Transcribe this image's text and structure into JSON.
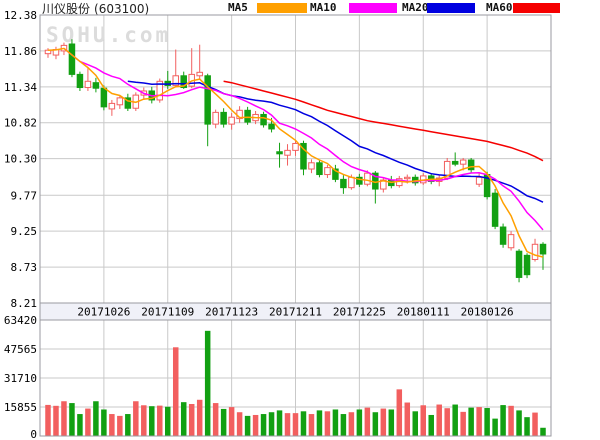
{
  "header": {
    "title_name": "川仪股份",
    "title_code": "(603100)",
    "legend": [
      {
        "label": "MA5",
        "color": "#ffa000"
      },
      {
        "label": "MA10",
        "color": "#ff00ff"
      },
      {
        "label": "MA20",
        "color": "#0000e0"
      },
      {
        "label": "MA60",
        "color": "#f50000"
      }
    ]
  },
  "watermark": "SOHU.com",
  "chart_data": {
    "type": "candlestick",
    "title": "川仪股份 (603100)",
    "legend_entries": [
      "MA5",
      "MA10",
      "MA20",
      "MA60"
    ],
    "price_axis": {
      "ticks": [
        "12.38",
        "11.86",
        "11.34",
        "10.82",
        "10.30",
        "9.77",
        "9.25",
        "8.73",
        "8.21"
      ],
      "min": 8.21,
      "max": 12.38
    },
    "volume_axis": {
      "ticks": [
        "63420",
        "47565",
        "31710",
        "15855",
        "0"
      ],
      "min": 0,
      "max": 63420
    },
    "x_axis": {
      "date_labels": [
        "20171026",
        "20171109",
        "20171123",
        "20171211",
        "20171225",
        "20180111",
        "20180126"
      ]
    },
    "colors": {
      "up": "#f25f5f",
      "down": "#12a012",
      "ma5": "#ffa000",
      "ma10": "#ff00ff",
      "ma20": "#0000e0",
      "ma60": "#f50000",
      "grid": "#c9c9c9",
      "border": "#9a9aa0",
      "date_strip_bg": "#f0f1f8",
      "watermark": "#dcdcdc",
      "text": "#000000"
    },
    "candles_format": "[open, high, low, close]",
    "candles": [
      [
        11.82,
        11.9,
        11.76,
        11.87
      ],
      [
        11.8,
        11.92,
        11.74,
        11.88
      ],
      [
        11.86,
        11.98,
        11.8,
        11.94
      ],
      [
        11.96,
        12.03,
        11.48,
        11.52
      ],
      [
        11.52,
        11.56,
        11.28,
        11.33
      ],
      [
        11.33,
        11.62,
        11.28,
        11.42
      ],
      [
        11.4,
        11.47,
        11.26,
        11.32
      ],
      [
        11.32,
        11.36,
        11.0,
        11.05
      ],
      [
        11.02,
        11.15,
        10.92,
        11.1
      ],
      [
        11.08,
        11.22,
        11.02,
        11.18
      ],
      [
        11.18,
        11.24,
        10.99,
        11.03
      ],
      [
        11.03,
        11.26,
        10.99,
        11.22
      ],
      [
        11.22,
        11.33,
        11.15,
        11.28
      ],
      [
        11.28,
        11.34,
        11.1,
        11.15
      ],
      [
        11.15,
        11.46,
        11.11,
        11.42
      ],
      [
        11.42,
        11.57,
        11.31,
        11.36
      ],
      [
        11.36,
        11.88,
        11.33,
        11.5
      ],
      [
        11.5,
        11.56,
        11.31,
        11.33
      ],
      [
        11.35,
        11.9,
        11.32,
        11.52
      ],
      [
        11.5,
        11.95,
        11.45,
        11.55
      ],
      [
        11.5,
        11.53,
        10.48,
        10.8
      ],
      [
        10.8,
        11.01,
        10.74,
        10.97
      ],
      [
        10.97,
        11.03,
        10.75,
        10.8
      ],
      [
        10.8,
        10.96,
        10.72,
        10.9
      ],
      [
        10.88,
        11.06,
        10.82,
        11.0
      ],
      [
        11.0,
        11.05,
        10.79,
        10.83
      ],
      [
        10.85,
        10.99,
        10.8,
        10.94
      ],
      [
        10.94,
        10.98,
        10.75,
        10.79
      ],
      [
        10.8,
        10.89,
        10.68,
        10.73
      ],
      [
        10.4,
        10.53,
        10.17,
        10.37
      ],
      [
        10.35,
        10.51,
        10.2,
        10.42
      ],
      [
        10.42,
        10.56,
        10.34,
        10.52
      ],
      [
        10.52,
        10.56,
        10.06,
        10.15
      ],
      [
        10.15,
        10.29,
        10.09,
        10.24
      ],
      [
        10.24,
        10.28,
        10.03,
        10.07
      ],
      [
        10.07,
        10.21,
        10.02,
        10.17
      ],
      [
        10.15,
        10.21,
        9.96,
        10.0
      ],
      [
        10.0,
        10.06,
        9.79,
        9.88
      ],
      [
        9.88,
        10.07,
        9.85,
        10.03
      ],
      [
        10.03,
        10.08,
        9.89,
        9.93
      ],
      [
        9.93,
        10.13,
        9.9,
        10.09
      ],
      [
        10.09,
        10.12,
        9.65,
        9.86
      ],
      [
        9.86,
        10.03,
        9.81,
        9.99
      ],
      [
        9.99,
        10.05,
        9.87,
        9.91
      ],
      [
        9.91,
        10.05,
        9.88,
        10.01
      ],
      [
        10.01,
        10.07,
        9.94,
        10.03
      ],
      [
        10.03,
        10.07,
        9.91,
        9.95
      ],
      [
        9.95,
        10.09,
        9.92,
        10.05
      ],
      [
        10.05,
        10.09,
        9.93,
        9.97
      ],
      [
        9.97,
        10.07,
        9.9,
        10.02
      ],
      [
        10.02,
        10.31,
        9.99,
        10.26
      ],
      [
        10.26,
        10.39,
        10.19,
        10.22
      ],
      [
        10.22,
        10.31,
        10.13,
        10.28
      ],
      [
        10.28,
        10.31,
        10.09,
        10.14
      ],
      [
        9.93,
        10.09,
        9.89,
        10.03
      ],
      [
        10.07,
        10.11,
        9.71,
        9.75
      ],
      [
        9.8,
        9.86,
        9.28,
        9.32
      ],
      [
        9.31,
        9.36,
        9.01,
        9.06
      ],
      [
        9.01,
        9.25,
        8.97,
        9.2
      ],
      [
        8.96,
        8.99,
        8.51,
        8.58
      ],
      [
        8.9,
        8.93,
        8.57,
        8.62
      ],
      [
        8.84,
        9.14,
        8.81,
        9.06
      ],
      [
        9.06,
        9.09,
        8.69,
        8.92
      ]
    ],
    "volumes": [
      17000,
      16500,
      19000,
      18000,
      12000,
      15000,
      19000,
      14500,
      12000,
      11000,
      12000,
      19000,
      16800,
      16300,
      16600,
      16000,
      48500,
      18500,
      17500,
      19800,
      57500,
      18000,
      14800,
      15800,
      13000,
      11000,
      11500,
      12000,
      13000,
      14000,
      12500,
      12500,
      13500,
      12000,
      14000,
      13500,
      14500,
      12000,
      13000,
      14500,
      15500,
      13000,
      15000,
      14500,
      25500,
      18300,
      13500,
      16800,
      11500,
      17200,
      15200,
      17200,
      13200,
      15500,
      15800,
      15300,
      9500,
      16900,
      16500,
      14000,
      10300,
      12800,
      4500
    ],
    "ma_windows": {
      "ma5": 5,
      "ma10": 10,
      "ma20": 20
    },
    "ma60": [
      null,
      null,
      null,
      null,
      null,
      null,
      null,
      null,
      null,
      null,
      null,
      null,
      null,
      null,
      null,
      null,
      null,
      null,
      null,
      null,
      null,
      null,
      11.42,
      11.4,
      11.37,
      11.34,
      11.31,
      11.28,
      11.25,
      11.22,
      11.19,
      11.16,
      11.12,
      11.08,
      11.04,
      11.0,
      10.97,
      10.94,
      10.91,
      10.88,
      10.85,
      10.83,
      10.81,
      10.79,
      10.77,
      10.75,
      10.73,
      10.71,
      10.69,
      10.67,
      10.65,
      10.63,
      10.61,
      10.59,
      10.57,
      10.55,
      10.52,
      10.49,
      10.46,
      10.42,
      10.38,
      10.33,
      10.27
    ]
  }
}
